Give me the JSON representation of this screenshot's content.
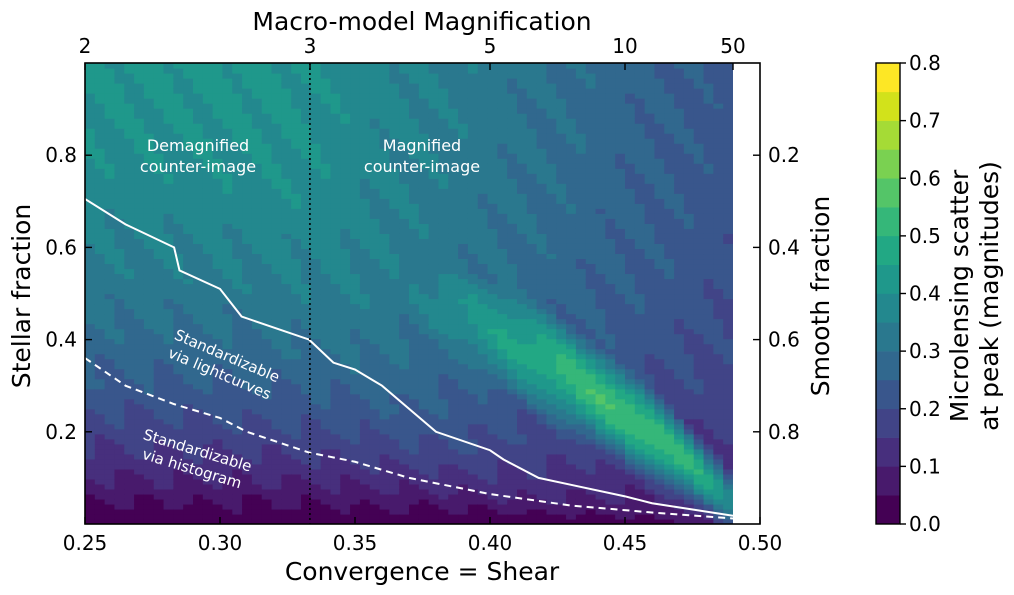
{
  "chart_data": {
    "type": "heatmap",
    "title": "Macro-model Magnification",
    "xlabel": "Convergence = Shear",
    "ylabel": "Stellar fraction",
    "y2label": "Smooth fraction",
    "x_ticks": [
      "0.25",
      "0.30",
      "0.35",
      "0.40",
      "0.45",
      "0.50"
    ],
    "x_tick_values": [
      0.25,
      0.3,
      0.35,
      0.4,
      0.45,
      0.5
    ],
    "xlim": [
      0.25,
      0.5
    ],
    "ylim": [
      0.0,
      1.0
    ],
    "y_ticks": [
      "0.2",
      "0.4",
      "0.6",
      "0.8"
    ],
    "y_tick_values": [
      0.2,
      0.4,
      0.6,
      0.8
    ],
    "y2_ticks": [
      "0.2",
      "0.4",
      "0.6",
      "0.8"
    ],
    "y2_tick_values": [
      0.2,
      0.4,
      0.6,
      0.8
    ],
    "top_ticks": [
      "2",
      "3",
      "5",
      "10",
      "50"
    ],
    "top_tick_values": [
      2,
      3,
      5,
      10,
      50
    ],
    "colorbar": {
      "label_line1": "Microlensing scatter",
      "label_line2": "at peak (magnitudes)",
      "ticks": [
        "0.0",
        "0.1",
        "0.2",
        "0.3",
        "0.4",
        "0.5",
        "0.6",
        "0.7",
        "0.8"
      ],
      "levels": [
        0.0,
        0.05,
        0.1,
        0.15,
        0.2,
        0.25,
        0.3,
        0.35,
        0.4,
        0.45,
        0.5,
        0.55,
        0.6,
        0.65,
        0.7,
        0.75,
        0.8
      ],
      "colors": [
        "#440154",
        "#481a6c",
        "#472f7d",
        "#414487",
        "#39568c",
        "#31688e",
        "#2a788e",
        "#23888e",
        "#1f988b",
        "#22a884",
        "#35b779",
        "#54c568",
        "#7ad151",
        "#a5db36",
        "#d2e21b",
        "#fde725"
      ]
    },
    "annotations": {
      "demag_line1": "Demagnified",
      "demag_line2": "counter-image",
      "mag_line1": "Magnified",
      "mag_line2": "counter-image",
      "lc_line1": "Standardizable",
      "lc_line2": "via lightcurves",
      "hist_line1": "Standardizable",
      "hist_line2": "via histogram"
    },
    "divider_x": 0.3333,
    "lightcurve_boundary": [
      [
        0.25,
        0.705
      ],
      [
        0.265,
        0.65
      ],
      [
        0.283,
        0.6
      ],
      [
        0.285,
        0.55
      ],
      [
        0.3,
        0.51
      ],
      [
        0.308,
        0.45
      ],
      [
        0.333,
        0.4
      ],
      [
        0.342,
        0.35
      ],
      [
        0.35,
        0.335
      ],
      [
        0.36,
        0.3
      ],
      [
        0.37,
        0.25
      ],
      [
        0.38,
        0.2
      ],
      [
        0.4,
        0.16
      ],
      [
        0.405,
        0.14
      ],
      [
        0.418,
        0.1
      ],
      [
        0.43,
        0.085
      ],
      [
        0.45,
        0.06
      ],
      [
        0.46,
        0.045
      ],
      [
        0.49,
        0.018
      ]
    ],
    "histogram_boundary": [
      [
        0.25,
        0.36
      ],
      [
        0.265,
        0.3
      ],
      [
        0.283,
        0.26
      ],
      [
        0.3,
        0.23
      ],
      [
        0.31,
        0.2
      ],
      [
        0.333,
        0.155
      ],
      [
        0.35,
        0.135
      ],
      [
        0.37,
        0.1
      ],
      [
        0.4,
        0.065
      ],
      [
        0.43,
        0.04
      ],
      [
        0.46,
        0.025
      ],
      [
        0.49,
        0.012
      ]
    ]
  }
}
